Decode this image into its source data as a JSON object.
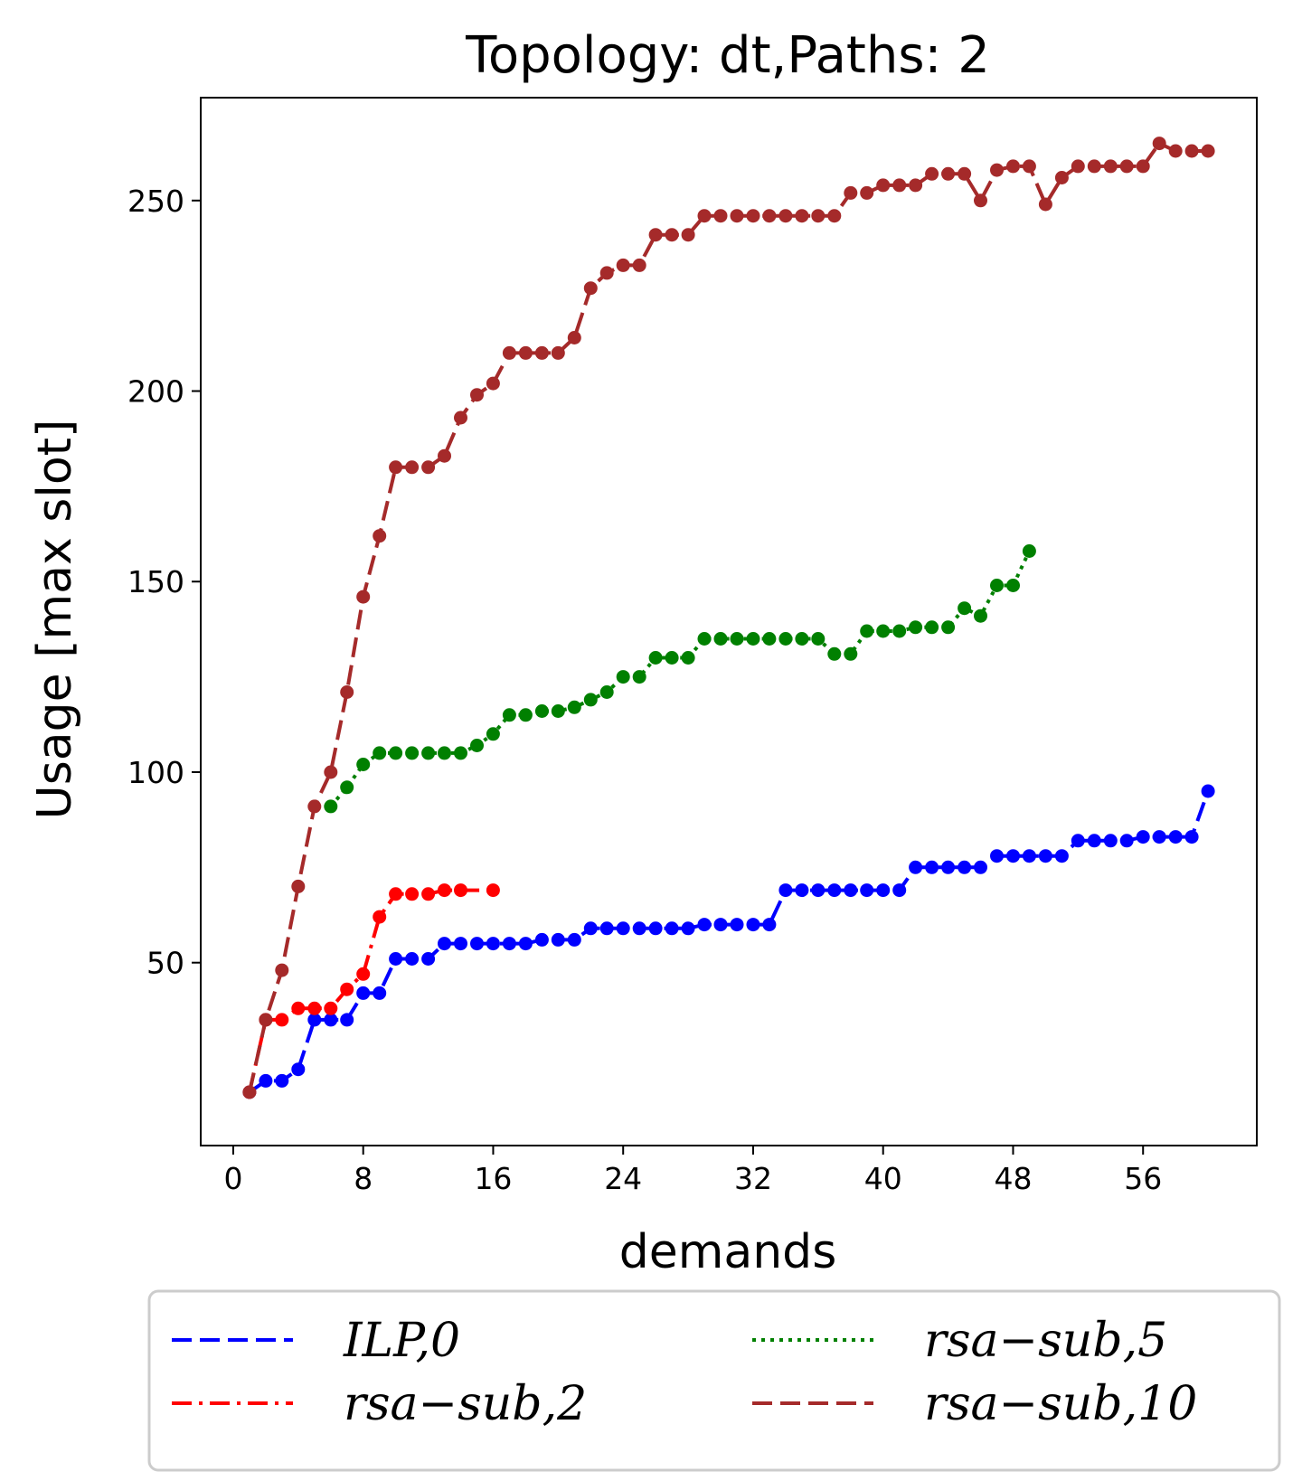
{
  "chart_data": {
    "type": "line",
    "title": "Topology: dt,Paths: 2",
    "xlabel": "demands",
    "ylabel": "Usage [max slot]",
    "xlim": [
      -2,
      63
    ],
    "ylim": [
      2,
      277
    ],
    "xticks": [
      0,
      8,
      16,
      24,
      32,
      40,
      48,
      56
    ],
    "yticks": [
      50,
      100,
      150,
      200,
      250
    ],
    "grid": false,
    "legend_placement": "below",
    "series": [
      {
        "name": "ILP, 0",
        "label_display": "ILP,0",
        "color": "#0000ff",
        "dash": "dashed",
        "x": [
          1,
          2,
          3,
          4,
          5,
          6,
          7,
          8,
          9,
          10,
          11,
          12,
          13,
          14,
          15,
          16,
          17,
          18,
          19,
          20,
          21,
          22,
          23,
          24,
          25,
          26,
          27,
          28,
          29,
          30,
          31,
          32,
          33,
          34,
          35,
          36,
          37,
          38,
          39,
          40,
          41,
          42,
          43,
          44,
          45,
          46,
          47,
          48,
          49,
          50,
          51,
          52,
          53,
          54,
          55,
          56,
          57,
          58,
          59,
          60
        ],
        "y": [
          16,
          19,
          19,
          22,
          35,
          35,
          35,
          42,
          42,
          51,
          51,
          51,
          55,
          55,
          55,
          55,
          55,
          55,
          56,
          56,
          56,
          59,
          59,
          59,
          59,
          59,
          59,
          59,
          60,
          60,
          60,
          60,
          60,
          69,
          69,
          69,
          69,
          69,
          69,
          69,
          69,
          75,
          75,
          75,
          75,
          75,
          78,
          78,
          78,
          78,
          78,
          82,
          82,
          82,
          82,
          83,
          83,
          83,
          83,
          95
        ]
      },
      {
        "name": "rsa-sub, 2",
        "label_display": "rsa−sub,2",
        "color": "#ff0000",
        "dash": "dashdot",
        "x": [
          1,
          2,
          3,
          4,
          5,
          6,
          7,
          8,
          9,
          10,
          11,
          12,
          13,
          14,
          16
        ],
        "y": [
          16,
          35,
          35,
          38,
          38,
          38,
          43,
          47,
          62,
          68,
          68,
          68,
          69,
          69,
          69
        ]
      },
      {
        "name": "rsa-sub, 5",
        "label_display": "rsa−sub,5",
        "color": "#008000",
        "dash": "dotted",
        "x": [
          6,
          7,
          8,
          9,
          10,
          11,
          12,
          13,
          14,
          15,
          16,
          17,
          18,
          19,
          20,
          21,
          22,
          23,
          24,
          25,
          26,
          27,
          28,
          29,
          30,
          31,
          32,
          33,
          34,
          35,
          36,
          37,
          38,
          39,
          40,
          41,
          42,
          43,
          44,
          45,
          46,
          47,
          48,
          49
        ],
        "y": [
          91,
          96,
          102,
          105,
          105,
          105,
          105,
          105,
          105,
          107,
          110,
          115,
          115,
          116,
          116,
          117,
          119,
          121,
          125,
          125,
          130,
          130,
          130,
          135,
          135,
          135,
          135,
          135,
          135,
          135,
          135,
          131,
          131,
          137,
          137,
          137,
          138,
          138,
          138,
          143,
          141,
          149,
          149,
          158
        ]
      },
      {
        "name": "rsa-sub, 10",
        "label_display": "rsa−sub,10",
        "color": "#a52a2a",
        "dash": "dashed",
        "x": [
          1,
          2,
          3,
          4,
          5,
          6,
          7,
          8,
          9,
          10,
          11,
          12,
          13,
          14,
          15,
          16,
          17,
          18,
          19,
          20,
          21,
          22,
          23,
          24,
          25,
          26,
          27,
          28,
          29,
          30,
          31,
          32,
          33,
          34,
          35,
          36,
          37,
          38,
          39,
          40,
          41,
          42,
          43,
          44,
          45,
          46,
          47,
          48,
          49,
          50,
          51,
          52,
          53,
          54,
          55,
          56,
          57,
          58,
          59,
          60
        ],
        "y": [
          16,
          35,
          48,
          70,
          91,
          100,
          121,
          146,
          162,
          180,
          180,
          180,
          183,
          193,
          199,
          202,
          210,
          210,
          210,
          210,
          214,
          227,
          231,
          233,
          233,
          241,
          241,
          241,
          246,
          246,
          246,
          246,
          246,
          246,
          246,
          246,
          246,
          252,
          252,
          254,
          254,
          254,
          257,
          257,
          257,
          250,
          258,
          259,
          259,
          249,
          256,
          259,
          259,
          259,
          259,
          259,
          265,
          263,
          263,
          263
        ]
      }
    ]
  }
}
